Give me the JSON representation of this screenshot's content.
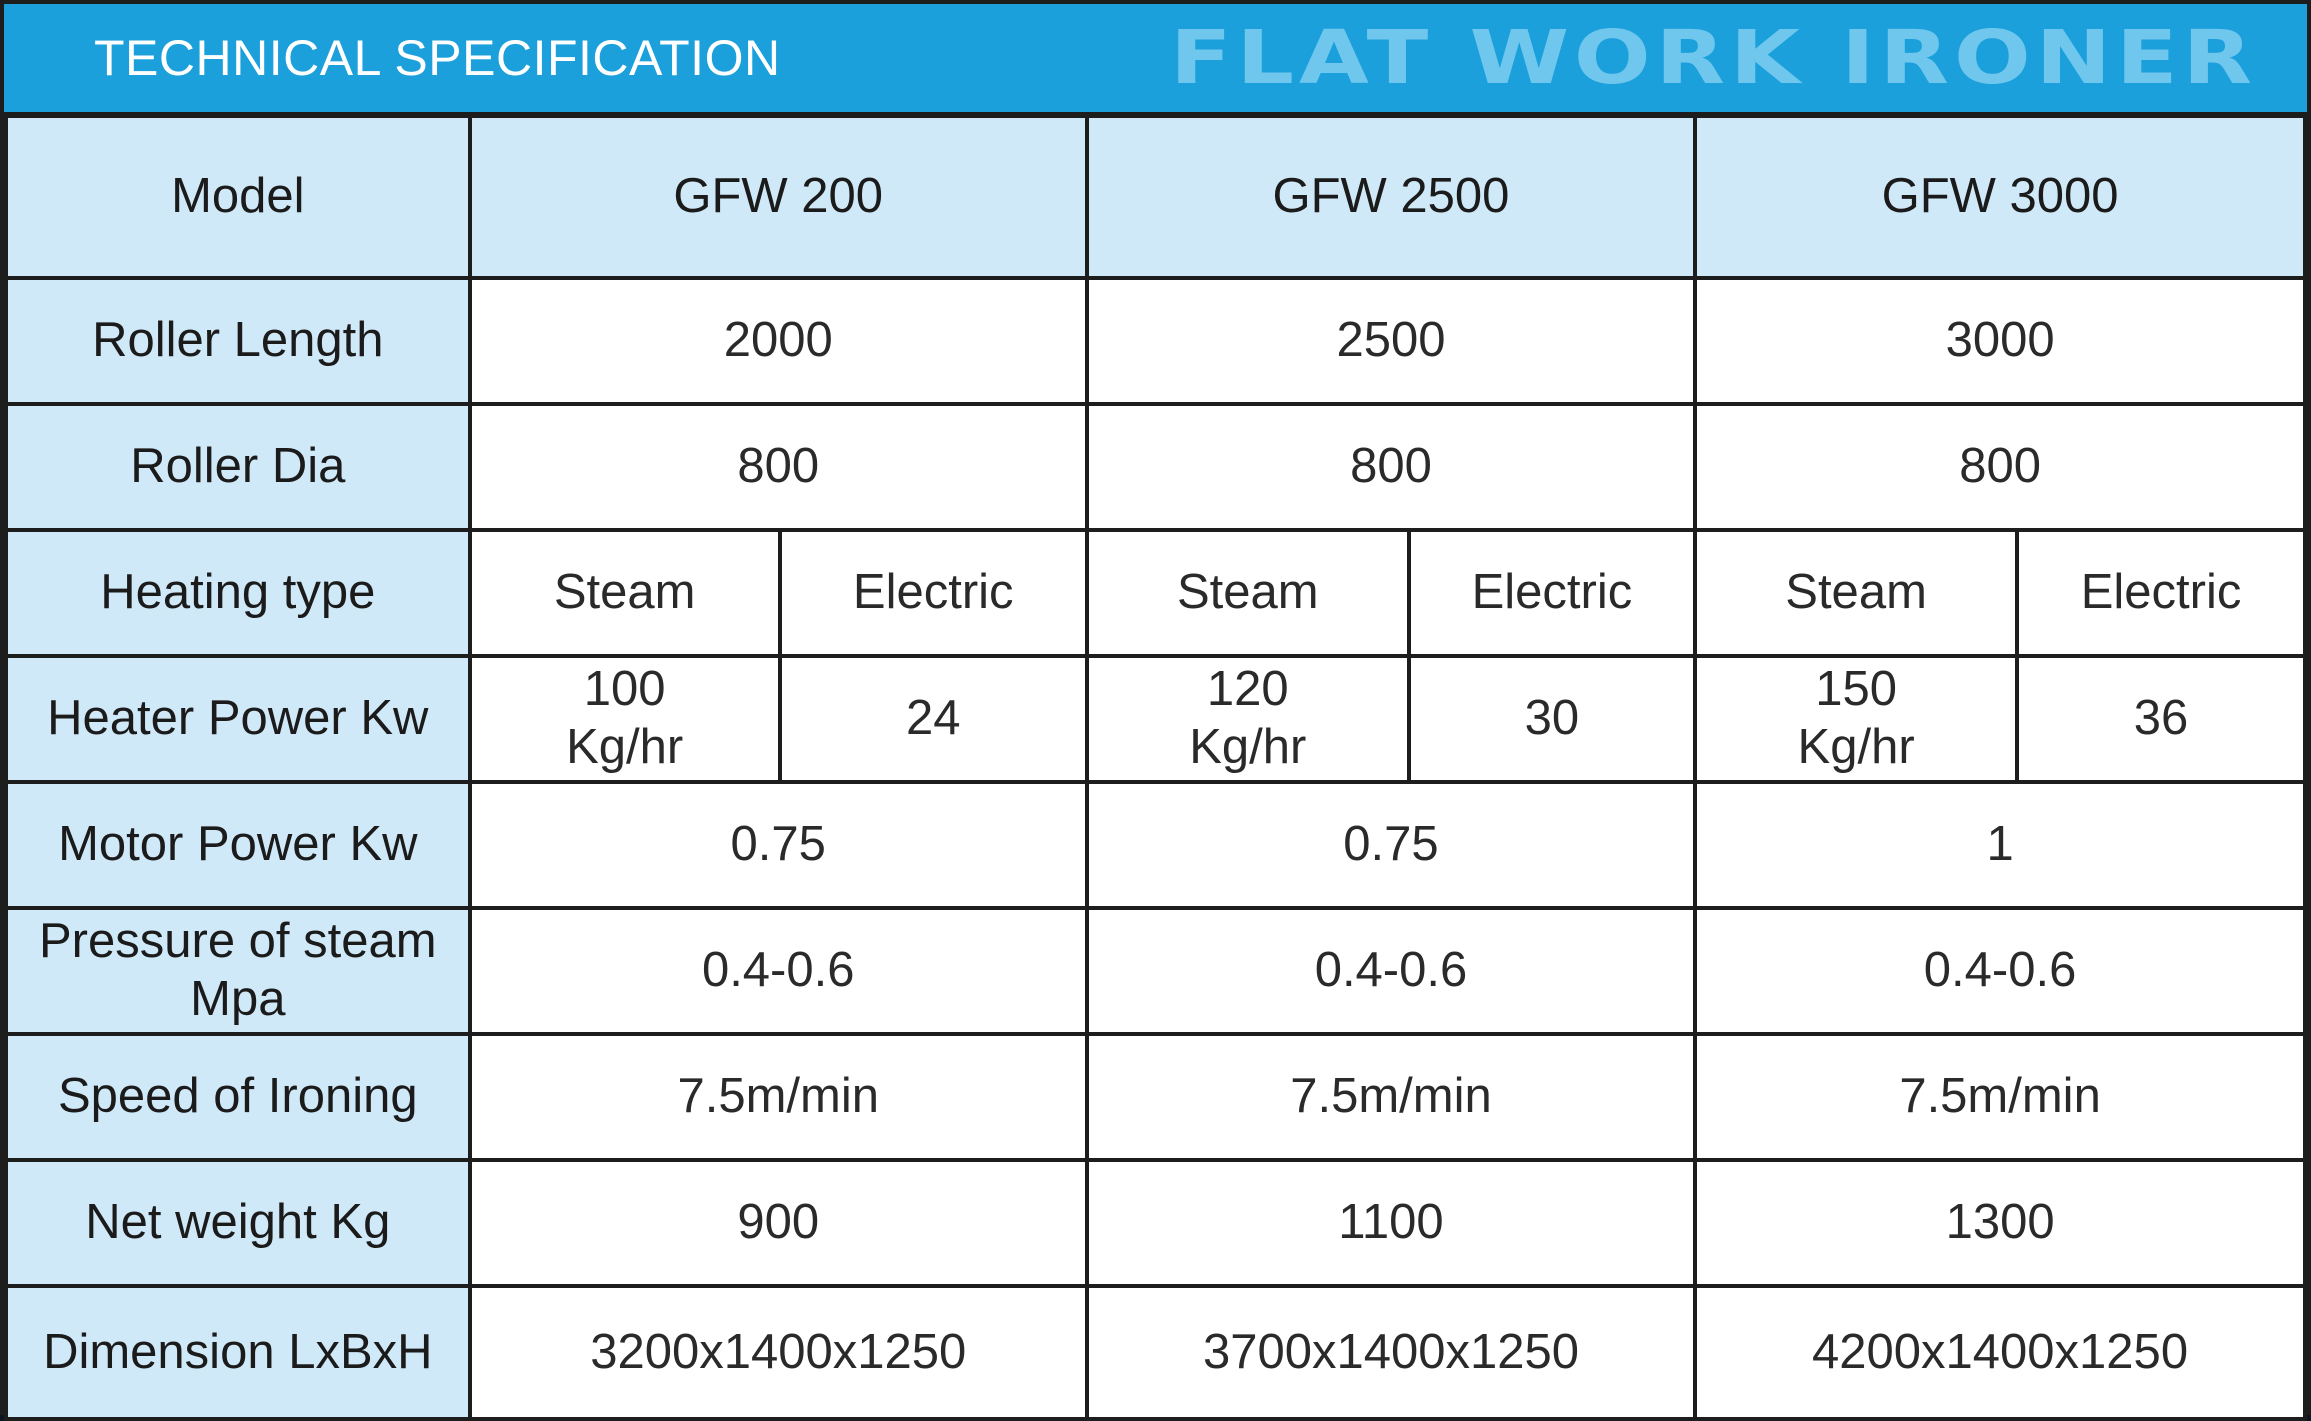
{
  "header": {
    "title": "TECHNICAL SPECIFICATION",
    "product": "FLAT WORK IRONER"
  },
  "table": {
    "model_label": "Model",
    "models": [
      "GFW 200",
      "GFW 2500",
      "GFW 3000"
    ],
    "roller_length": {
      "label": "Roller Length",
      "values": [
        "2000",
        "2500",
        "3000"
      ]
    },
    "roller_dia": {
      "label": "Roller Dia",
      "values": [
        "800",
        "800",
        "800"
      ]
    },
    "heating_type": {
      "label": "Heating type",
      "steam": "Steam",
      "electric": "Electric"
    },
    "heater_power": {
      "label": "Heater Power Kw",
      "steam_values": [
        "100",
        "120",
        "150"
      ],
      "steam_unit": "Kg/hr",
      "electric_values": [
        "24",
        "30",
        "36"
      ]
    },
    "motor_power": {
      "label": "Motor Power Kw",
      "values": [
        "0.75",
        "0.75",
        "1"
      ]
    },
    "steam_pressure": {
      "label_line1": "Pressure of steam",
      "label_line2": "Mpa",
      "values": [
        "0.4-0.6",
        "0.4-0.6",
        "0.4-0.6"
      ]
    },
    "ironing_speed": {
      "label": "Speed of Ironing",
      "values": [
        "7.5m/min",
        "7.5m/min",
        "7.5m/min"
      ]
    },
    "net_weight": {
      "label": "Net weight Kg",
      "values": [
        "900",
        "1100",
        "1300"
      ]
    },
    "dimension": {
      "label": "Dimension LxBxH",
      "values": [
        "3200x1400x1250",
        "3700x1400x1250",
        "4200x1400x1250"
      ]
    }
  }
}
